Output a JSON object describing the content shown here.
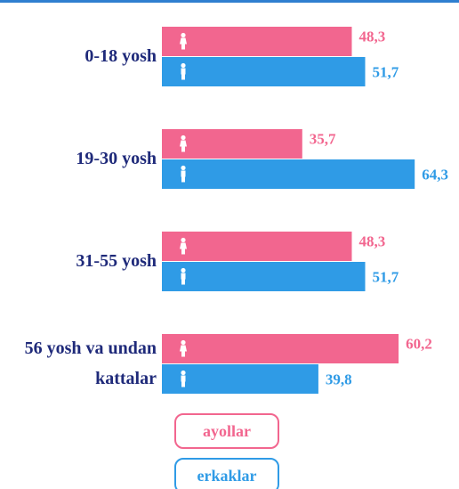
{
  "chart_data": {
    "type": "hbar",
    "categories": [
      "0-18 yosh",
      "19-30 yosh",
      "31-55 yosh",
      "56 yosh va undan kattalar"
    ],
    "series": [
      {
        "name": "ayollar",
        "color": "#f2668f",
        "values": [
          48.3,
          35.7,
          48.3,
          60.2
        ],
        "value_labels": [
          "48,3",
          "35,7",
          "48,3",
          "60,2"
        ]
      },
      {
        "name": "erkaklar",
        "color": "#2f9be6",
        "values": [
          51.7,
          64.3,
          51.7,
          39.8
        ],
        "value_labels": [
          "51,7",
          "64,3",
          "51,7",
          "39,8"
        ]
      }
    ]
  }
}
